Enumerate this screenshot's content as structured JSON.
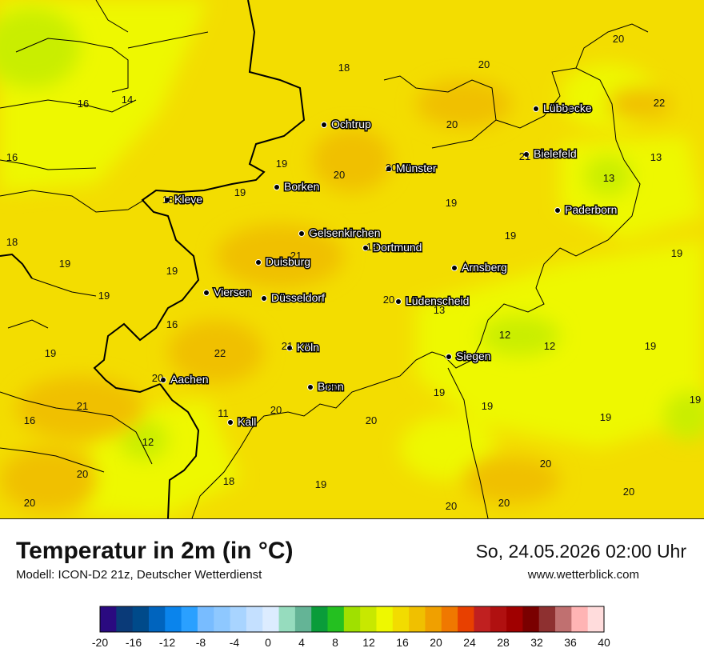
{
  "title": "Temperatur in 2m (in °C)",
  "model": "Modell: ICON-D2 21z, Deutscher Wetterdienst",
  "datetime": "So, 24.05.2026 02:00 Uhr",
  "website": "www.wetterblick.com",
  "colors": {
    "field_base": "#f3dd00",
    "field_warm": "#f0c000",
    "field_cool": "#eef800",
    "field_cold": "#c9ee00",
    "border": "#000000"
  },
  "cities": [
    {
      "name": "Lübbecke"
    },
    {
      "name": "Ochtrup"
    },
    {
      "name": "Bielefeld"
    },
    {
      "name": "Münster"
    },
    {
      "name": "Borken"
    },
    {
      "name": "Kleve"
    },
    {
      "name": "Paderborn"
    },
    {
      "name": "Gelsenkirchen"
    },
    {
      "name": "Dortmund"
    },
    {
      "name": "Duisburg"
    },
    {
      "name": "Arnsberg"
    },
    {
      "name": "Viersen"
    },
    {
      "name": "Düsseldorf"
    },
    {
      "name": "Lüdenscheid"
    },
    {
      "name": "Köln"
    },
    {
      "name": "Siegen"
    },
    {
      "name": "Aachen"
    },
    {
      "name": "Bonn"
    },
    {
      "name": "Kall"
    }
  ],
  "values": [
    "20",
    "20",
    "18",
    "22",
    "16",
    "14",
    "21",
    "20",
    "16",
    "13",
    "21",
    "20",
    "13",
    "19",
    "19",
    "18",
    "19",
    "20",
    "19",
    "19",
    "18",
    "21",
    "19",
    "19",
    "19",
    "19",
    "19",
    "16",
    "20",
    "13",
    "19",
    "12",
    "21",
    "12",
    "19",
    "22",
    "20",
    "19",
    "20",
    "18",
    "21",
    "19",
    "19",
    "20",
    "16",
    "11",
    "20",
    "20",
    "12",
    "19",
    "20",
    "18",
    "20",
    "19",
    "20",
    "20",
    "20"
  ],
  "legend": {
    "colors": [
      "#2a0a80",
      "#0a3a78",
      "#004a8a",
      "#0064be",
      "#0a84ec",
      "#2aa0ff",
      "#78bcff",
      "#8ec8ff",
      "#a8d4ff",
      "#c4e0ff",
      "#dcecff",
      "#96dcbe",
      "#64b496",
      "#0a9c3a",
      "#24c020",
      "#a0e000",
      "#c8e800",
      "#eef800",
      "#f2dc00",
      "#f0c000",
      "#f0a000",
      "#f07800",
      "#e84000",
      "#c02020",
      "#b01010",
      "#a00000",
      "#7a0000",
      "#8e3030",
      "#c07070",
      "#ffb4b4",
      "#ffdcdc"
    ],
    "ticks": [
      "-20",
      "-16",
      "-12",
      "-8",
      "-4",
      "0",
      "4",
      "8",
      "12",
      "16",
      "20",
      "24",
      "28",
      "32",
      "36",
      "40"
    ]
  }
}
